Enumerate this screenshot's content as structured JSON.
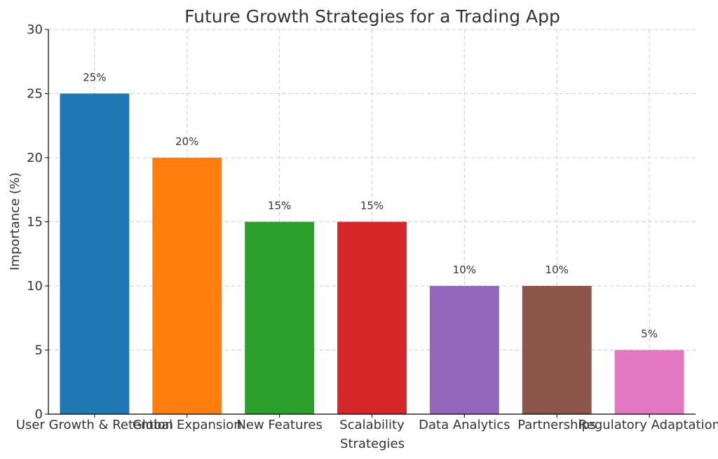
{
  "chart_data": {
    "type": "bar",
    "title": "Future Growth Strategies for a Trading App",
    "xlabel": "Strategies",
    "ylabel": "Importance (%)",
    "categories": [
      "User Growth & Retention",
      "Global Expansion",
      "New Features",
      "Scalability",
      "Data Analytics",
      "Partnerships",
      "Regulatory Adaptation"
    ],
    "values": [
      25,
      20,
      15,
      15,
      10,
      10,
      5
    ],
    "data_labels": [
      "25%",
      "20%",
      "15%",
      "15%",
      "10%",
      "10%",
      "5%"
    ],
    "colors": [
      "#1f77b4",
      "#ff7f0e",
      "#2ca02c",
      "#d62728",
      "#9467bd",
      "#8c564b",
      "#e377c2"
    ],
    "ylim": [
      0,
      30
    ],
    "yticks": [
      0,
      5,
      10,
      15,
      20,
      25,
      30
    ],
    "grid": true,
    "legend": "none"
  }
}
